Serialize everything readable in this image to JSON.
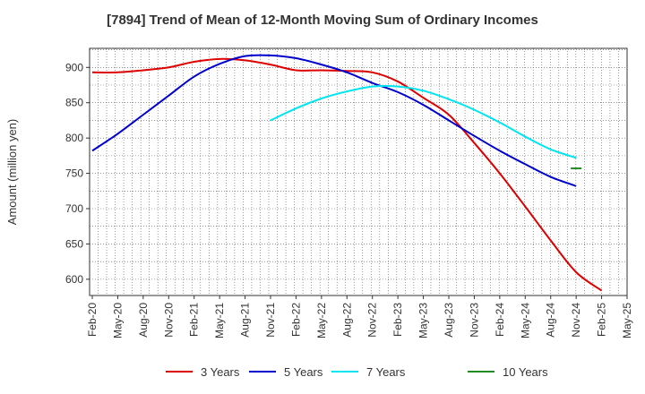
{
  "chart_data": {
    "type": "line",
    "title": "[7894]  Trend of Mean of 12-Month Moving Sum of Ordinary Incomes",
    "xlabel": "",
    "ylabel": "Amount (million yen)",
    "ylim": [
      577,
      927
    ],
    "yticks": [
      600,
      650,
      700,
      750,
      800,
      850,
      900
    ],
    "grid": true,
    "legend_position": "bottom",
    "categories": [
      "Feb-20",
      "May-20",
      "Aug-20",
      "Nov-20",
      "Feb-21",
      "May-21",
      "Aug-21",
      "Nov-21",
      "Feb-22",
      "May-22",
      "Aug-22",
      "Nov-22",
      "Feb-23",
      "May-23",
      "Aug-23",
      "Nov-23",
      "Feb-24",
      "May-24",
      "Aug-24",
      "Nov-24",
      "Feb-25",
      "May-25"
    ],
    "series": [
      {
        "name": "3 Years",
        "color": "#dd0000",
        "values": [
          893,
          893,
          896,
          900,
          908,
          912,
          910,
          904,
          896,
          896,
          895,
          893,
          880,
          857,
          833,
          793,
          750,
          703,
          655,
          610,
          584,
          null
        ]
      },
      {
        "name": "5 Years",
        "color": "#0000cc",
        "values": [
          782,
          806,
          833,
          860,
          887,
          905,
          916,
          917,
          913,
          904,
          893,
          878,
          865,
          847,
          825,
          803,
          782,
          763,
          745,
          732,
          null,
          null
        ]
      },
      {
        "name": "7 Years",
        "color": "#00e5ee",
        "values": [
          null,
          null,
          null,
          null,
          null,
          null,
          null,
          825,
          842,
          856,
          866,
          873,
          873,
          867,
          855,
          840,
          822,
          802,
          784,
          772,
          null,
          null
        ]
      },
      {
        "name": "10 Years",
        "color": "#228b22",
        "values": [
          null,
          null,
          null,
          null,
          null,
          null,
          null,
          null,
          null,
          null,
          null,
          null,
          null,
          null,
          null,
          null,
          null,
          null,
          null,
          757,
          null,
          null
        ]
      }
    ]
  }
}
